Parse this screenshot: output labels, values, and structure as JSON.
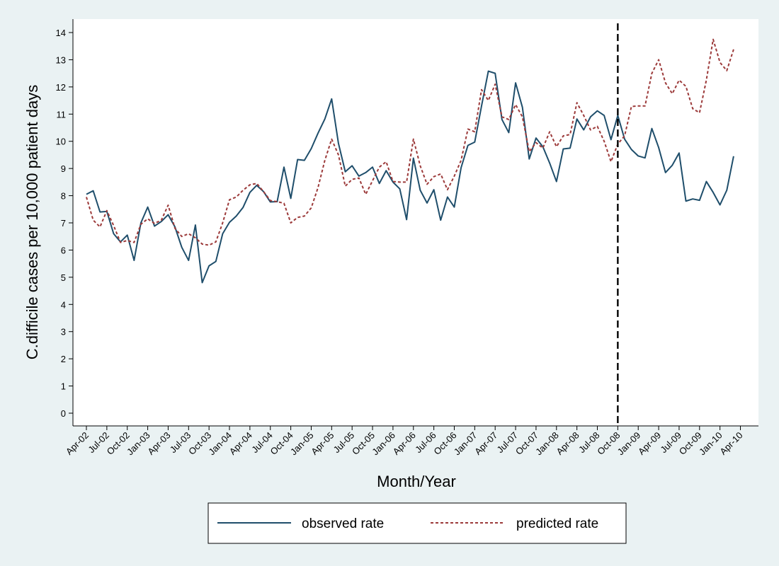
{
  "chart_data": {
    "type": "line",
    "xlabel": "Month/Year",
    "ylabel": "C.difficile cases per 10,000 patient days",
    "ylim": [
      0,
      14
    ],
    "y_ticks": [
      0,
      1,
      2,
      3,
      4,
      5,
      6,
      7,
      8,
      9,
      10,
      11,
      12,
      13,
      14
    ],
    "x_tick_labels": [
      "Apr-02",
      "Jul-02",
      "Oct-02",
      "Jan-03",
      "Apr-03",
      "Jul-03",
      "Oct-03",
      "Jan-04",
      "Apr-04",
      "Jul-04",
      "Oct-04",
      "Jan-05",
      "Apr-05",
      "Jul-05",
      "Oct-05",
      "Jan-06",
      "Apr-06",
      "Jul-06",
      "Oct-06",
      "Jan-07",
      "Apr-07",
      "Jul-07",
      "Oct-07",
      "Jan-08",
      "Apr-08",
      "Jul-08",
      "Oct-08",
      "Jan-09",
      "Apr-09",
      "Jul-09",
      "Oct-09",
      "Jan-10",
      "Apr-10"
    ],
    "x_start": "2002-04",
    "x_end": "2010-04",
    "vertical_reference_line": {
      "x": "2008-10",
      "style": "dashed",
      "color": "#000000"
    },
    "legend_position": "bottom",
    "series": [
      {
        "name": "observed rate",
        "color": "#1f4e6b",
        "style": "solid",
        "x": [
          "2002-04",
          "2002-05",
          "2002-06",
          "2002-07",
          "2002-08",
          "2002-09",
          "2002-10",
          "2002-11",
          "2002-12",
          "2003-01",
          "2003-02",
          "2003-03",
          "2003-04",
          "2003-05",
          "2003-06",
          "2003-07",
          "2003-08",
          "2003-09",
          "2003-10",
          "2003-11",
          "2003-12",
          "2004-01",
          "2004-02",
          "2004-03",
          "2004-04",
          "2004-05",
          "2004-06",
          "2004-07",
          "2004-08",
          "2004-09",
          "2004-10",
          "2004-11",
          "2004-12",
          "2005-01",
          "2005-02",
          "2005-03",
          "2005-04",
          "2005-05",
          "2005-06",
          "2005-07",
          "2005-08",
          "2005-09",
          "2005-10",
          "2005-11",
          "2005-12",
          "2006-01",
          "2006-02",
          "2006-03",
          "2006-04",
          "2006-05",
          "2006-06",
          "2006-07",
          "2006-08",
          "2006-09",
          "2006-10",
          "2006-11",
          "2006-12",
          "2007-01",
          "2007-02",
          "2007-03",
          "2007-04",
          "2007-05",
          "2007-06",
          "2007-07",
          "2007-08",
          "2007-09",
          "2007-10",
          "2007-11",
          "2007-12",
          "2008-01",
          "2008-02",
          "2008-03",
          "2008-04",
          "2008-05",
          "2008-06",
          "2008-07",
          "2008-08",
          "2008-09",
          "2008-10",
          "2008-11",
          "2008-12",
          "2009-01",
          "2009-02",
          "2009-03",
          "2009-04",
          "2009-05",
          "2009-06",
          "2009-07",
          "2009-08",
          "2009-09",
          "2009-10",
          "2009-11",
          "2009-12",
          "2010-01",
          "2010-02",
          "2010-03"
        ],
        "values": [
          8.05,
          8.18,
          7.4,
          7.42,
          6.6,
          6.3,
          6.55,
          5.62,
          7.0,
          7.58,
          6.88,
          7.05,
          7.3,
          6.85,
          6.1,
          5.62,
          6.92,
          4.8,
          5.42,
          5.58,
          6.6,
          7.02,
          7.25,
          7.57,
          8.12,
          8.38,
          8.15,
          7.77,
          7.78,
          9.05,
          7.9,
          9.33,
          9.3,
          9.73,
          10.3,
          10.82,
          11.56,
          9.92,
          8.88,
          9.1,
          8.72,
          8.85,
          9.05,
          8.45,
          8.92,
          8.5,
          8.25,
          7.12,
          9.38,
          8.2,
          7.73,
          8.22,
          7.1,
          7.95,
          7.58,
          9.03,
          9.85,
          9.97,
          11.3,
          12.58,
          12.5,
          10.8,
          10.32,
          12.15,
          11.25,
          9.35,
          10.12,
          9.8,
          9.2,
          8.52,
          9.72,
          9.75,
          10.82,
          10.42,
          10.9,
          11.12,
          10.95,
          10.06,
          10.95,
          10.08,
          9.7,
          9.46,
          9.39,
          10.47,
          9.77,
          8.85,
          9.12,
          9.57,
          7.8,
          7.88,
          7.83,
          8.52,
          8.12,
          7.66,
          8.2,
          9.45
        ]
      },
      {
        "name": "predicted rate",
        "color": "#9c3a3a",
        "style": "dashed",
        "x": [
          "2002-04",
          "2002-05",
          "2002-06",
          "2002-07",
          "2002-08",
          "2002-09",
          "2002-10",
          "2002-11",
          "2002-12",
          "2003-01",
          "2003-02",
          "2003-03",
          "2003-04",
          "2003-05",
          "2003-06",
          "2003-07",
          "2003-08",
          "2003-09",
          "2003-10",
          "2003-11",
          "2003-12",
          "2004-01",
          "2004-02",
          "2004-03",
          "2004-04",
          "2004-05",
          "2004-06",
          "2004-07",
          "2004-08",
          "2004-09",
          "2004-10",
          "2004-11",
          "2004-12",
          "2005-01",
          "2005-02",
          "2005-03",
          "2005-04",
          "2005-05",
          "2005-06",
          "2005-07",
          "2005-08",
          "2005-09",
          "2005-10",
          "2005-11",
          "2005-12",
          "2006-01",
          "2006-02",
          "2006-03",
          "2006-04",
          "2006-05",
          "2006-06",
          "2006-07",
          "2006-08",
          "2006-09",
          "2006-10",
          "2006-11",
          "2006-12",
          "2007-01",
          "2007-02",
          "2007-03",
          "2007-04",
          "2007-05",
          "2007-06",
          "2007-07",
          "2007-08",
          "2007-09",
          "2007-10",
          "2007-11",
          "2007-12",
          "2008-01",
          "2008-02",
          "2008-03",
          "2008-04",
          "2008-05",
          "2008-06",
          "2008-07",
          "2008-08",
          "2008-09",
          "2008-10",
          "2008-11",
          "2008-12",
          "2009-01",
          "2009-02",
          "2009-03",
          "2009-04",
          "2009-05",
          "2009-06",
          "2009-07",
          "2009-08",
          "2009-09",
          "2009-10",
          "2009-11",
          "2009-12",
          "2010-01",
          "2010-02",
          "2010-03"
        ],
        "values": [
          7.95,
          7.1,
          6.85,
          7.45,
          6.9,
          6.28,
          6.35,
          6.28,
          6.95,
          7.15,
          6.98,
          7.1,
          7.65,
          6.8,
          6.5,
          6.6,
          6.45,
          6.22,
          6.18,
          6.3,
          7.0,
          7.85,
          7.95,
          8.2,
          8.4,
          8.45,
          8.15,
          7.82,
          7.78,
          7.72,
          7.0,
          7.2,
          7.25,
          7.55,
          8.3,
          9.3,
          10.08,
          9.5,
          8.35,
          8.6,
          8.65,
          8.05,
          8.55,
          9.05,
          9.25,
          8.52,
          8.5,
          8.5,
          10.08,
          9.1,
          8.42,
          8.7,
          8.8,
          8.22,
          8.72,
          9.3,
          10.45,
          10.35,
          11.9,
          11.5,
          12.1,
          10.9,
          10.8,
          11.35,
          10.9,
          9.62,
          9.95,
          9.75,
          10.35,
          9.8,
          10.2,
          10.25,
          11.42,
          10.95,
          10.42,
          10.55,
          10.0,
          9.25,
          9.9,
          10.2,
          11.28,
          11.3,
          11.3,
          12.5,
          13.0,
          12.15,
          11.75,
          12.25,
          12.02,
          11.2,
          11.05,
          12.25,
          13.75,
          12.9,
          12.6,
          13.38
        ]
      }
    ]
  }
}
